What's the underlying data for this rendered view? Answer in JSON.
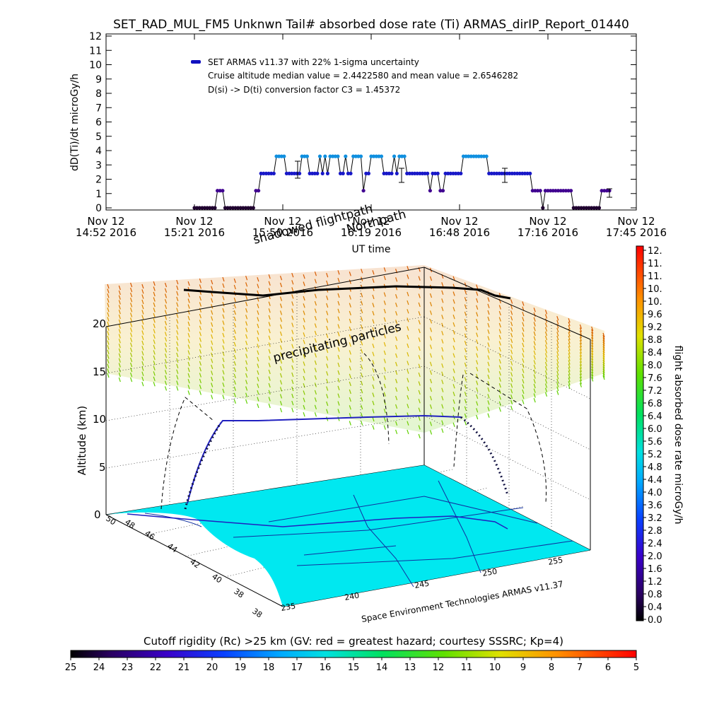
{
  "chart_data": [
    {
      "type": "scatter",
      "title": "SET_RAD_MUL_FM5 Unknwn Tail#  absorbed dose rate (Ti) ARMAS_dirIP_Report_01440",
      "ylabel": "dD(Ti)/dt microGy/h",
      "xlabel": "UT time",
      "ylim": [
        0,
        12
      ],
      "yticks": [
        "0",
        "1",
        "2",
        "3",
        "4",
        "5",
        "6",
        "7",
        "8",
        "9",
        "10",
        "11",
        "12"
      ],
      "xticks": [
        {
          "line1": "Nov 12",
          "line2": "14:52 2016"
        },
        {
          "line1": "Nov 12",
          "line2": "15:21 2016"
        },
        {
          "line1": "Nov 12",
          "line2": "15:50 2016"
        },
        {
          "line1": "Nov 12",
          "line2": "16:19 2016"
        },
        {
          "line1": "Nov 12",
          "line2": "16:48 2016"
        },
        {
          "line1": "Nov 12",
          "line2": "17:16 2016"
        },
        {
          "line1": "Nov 12",
          "line2": "17:45 2016"
        }
      ],
      "legend": {
        "series": "SET ARMAS v11.37 with 22% 1-sigma uncertainty",
        "note1": "Cruise altitude median value = 2.4422580 and mean value = 2.6546282",
        "note2": "D(si) -> D(ti) conversion factor C3 = 1.45372"
      },
      "series_values": [
        0,
        0,
        0,
        0,
        0,
        0,
        0,
        0,
        0,
        1.2,
        1.2,
        1.2,
        0,
        0,
        0,
        0,
        0,
        0,
        0,
        0,
        0,
        0,
        0,
        0,
        1.2,
        1.2,
        2.4,
        2.4,
        2.4,
        2.4,
        2.4,
        2.4,
        3.6,
        3.6,
        3.6,
        3.6,
        2.4,
        2.4,
        2.4,
        2.4,
        2.4,
        2.4,
        3.6,
        3.6,
        3.6,
        2.4,
        2.4,
        2.4,
        2.4,
        3.6,
        2.4,
        3.6,
        2.4,
        3.6,
        3.6,
        3.6,
        3.6,
        2.4,
        2.4,
        3.6,
        2.4,
        2.4,
        3.6,
        3.6,
        3.6,
        3.6,
        1.2,
        2.4,
        2.4,
        3.6,
        3.6,
        3.6,
        3.6,
        3.6,
        2.4,
        2.4,
        2.4,
        2.4,
        3.6,
        2.4,
        3.6,
        3.6,
        3.6,
        2.4,
        2.4,
        2.4,
        2.4,
        2.4,
        2.4,
        2.4,
        2.4,
        2.4,
        1.2,
        2.4,
        2.4,
        2.4,
        1.2,
        1.2,
        2.4,
        2.4,
        2.4,
        2.4,
        2.4,
        2.4,
        2.4,
        3.6,
        3.6,
        3.6,
        3.6,
        3.6,
        3.6,
        3.6,
        3.6,
        3.6,
        3.6,
        2.4,
        2.4,
        2.4,
        2.4,
        2.4,
        2.4,
        2.4,
        2.4,
        2.4,
        2.4,
        2.4,
        2.4,
        2.4,
        2.4,
        2.4,
        2.4,
        2.4,
        1.2,
        1.2,
        1.2,
        1.2,
        0,
        1.2,
        1.2,
        1.2,
        1.2,
        1.2,
        1.2,
        1.2,
        1.2,
        1.2,
        1.2,
        1.2,
        0,
        0,
        0,
        0,
        0,
        0,
        0,
        0,
        0,
        0,
        0,
        1.2,
        1.2,
        1.2,
        1.2
      ]
    },
    {
      "type": "scatter",
      "ylabel": "Altitude (km)",
      "yticks": [
        "0",
        "5",
        "10",
        "15",
        "20"
      ],
      "xlabel": "Space Environment Technologies ARMAS v11.37",
      "xticks": [
        "235",
        "240",
        "245",
        "250",
        "255"
      ],
      "lat_ticks": [
        "38",
        "38",
        "40",
        "42",
        "44",
        "46",
        "48",
        "50"
      ],
      "annotations": {
        "flight_path": "shadowed flightpath",
        "north_path": "Northpath",
        "particles": "precipitating particles"
      }
    },
    {
      "type": "heatmap",
      "label": "flight absorbed dose rate microGy/h",
      "ticks": [
        "12.",
        "11.",
        "11.",
        "10.",
        "10.",
        "9.6",
        "9.2",
        "8.8",
        "8.4",
        "8.0",
        "7.6",
        "7.2",
        "6.8",
        "6.4",
        "6.0",
        "5.6",
        "5.2",
        "4.8",
        "4.4",
        "4.0",
        "3.6",
        "3.2",
        "2.8",
        "2.4",
        "2.0",
        "1.6",
        "1.2",
        "0.8",
        "0.4",
        "0.0"
      ]
    },
    {
      "type": "heatmap",
      "label": "Cutoff rigidity (Rc) >25 km (GV: red = greatest hazard; courtesy SSSRC; Kp=4)",
      "ticks": [
        "25",
        "24",
        "23",
        "22",
        "21",
        "20",
        "19",
        "18",
        "17",
        "16",
        "15",
        "14",
        "13",
        "12",
        "11",
        "10",
        "9",
        "8",
        "7",
        "6",
        "5"
      ]
    }
  ]
}
